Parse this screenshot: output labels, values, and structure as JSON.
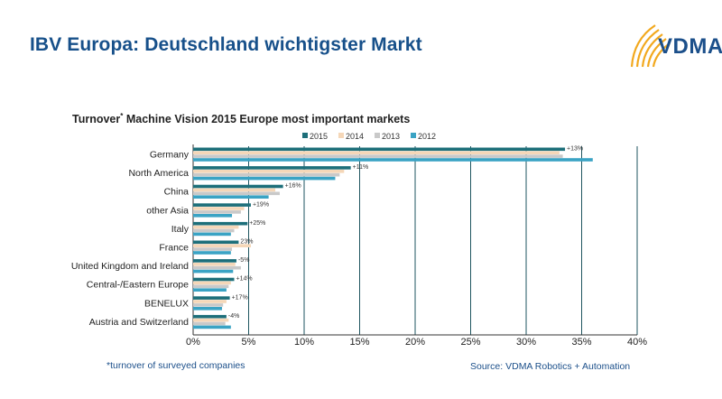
{
  "header": {
    "title": "IBV Europa: Deutschland wichtigster Markt",
    "logo_text": "VDMA",
    "logo_color": "#1b4f8a",
    "logo_accent": "#f2a81d"
  },
  "chart_data": {
    "type": "bar",
    "orientation": "horizontal",
    "title": "Turnover",
    "title_sup": "*",
    "title_rest": " Machine Vision 2015 Europe most important markets",
    "categories": [
      "Germany",
      "North America",
      "China",
      "other Asia",
      "Italy",
      "France",
      "United Kingdom and Ireland",
      "Central-/Eastern Europe",
      "BENELUX",
      "Austria and Switzerland"
    ],
    "series": [
      {
        "name": "2015",
        "color": "#1d6f7a",
        "values": [
          33.5,
          14.2,
          8.1,
          5.2,
          4.9,
          4.1,
          3.9,
          3.7,
          3.3,
          3.0
        ]
      },
      {
        "name": "2014",
        "color": "#f5d7b8",
        "values": [
          33.0,
          13.6,
          7.4,
          4.6,
          4.1,
          5.2,
          3.8,
          3.4,
          3.0,
          3.2
        ]
      },
      {
        "name": "2013",
        "color": "#c9c9c9",
        "values": [
          33.3,
          13.2,
          7.8,
          4.3,
          3.7,
          3.5,
          4.3,
          3.2,
          2.7,
          2.9
        ]
      },
      {
        "name": "2012",
        "color": "#3aa3c4",
        "values": [
          36.0,
          12.8,
          6.8,
          3.5,
          3.4,
          3.4,
          3.6,
          3.0,
          2.6,
          3.4
        ]
      }
    ],
    "growth_labels": [
      "+13%",
      "+11%",
      "+16%",
      "+19%",
      "+25%",
      "23%",
      "-5%",
      "+14%",
      "+17%",
      "-4%"
    ],
    "xlim": [
      0,
      40
    ],
    "xticks": [
      0,
      5,
      10,
      15,
      20,
      25,
      30,
      35,
      40
    ],
    "xtick_labels": [
      "0%",
      "5%",
      "10%",
      "15%",
      "20%",
      "25%",
      "30%",
      "35%",
      "40%"
    ],
    "grid": true,
    "legend_position": "top"
  },
  "footer": {
    "footnote": "*turnover of surveyed companies",
    "source": "Source: VDMA Robotics + Automation"
  },
  "colors": {
    "title": "#17508a",
    "grid": "#1f5560",
    "axis": "#333333"
  }
}
